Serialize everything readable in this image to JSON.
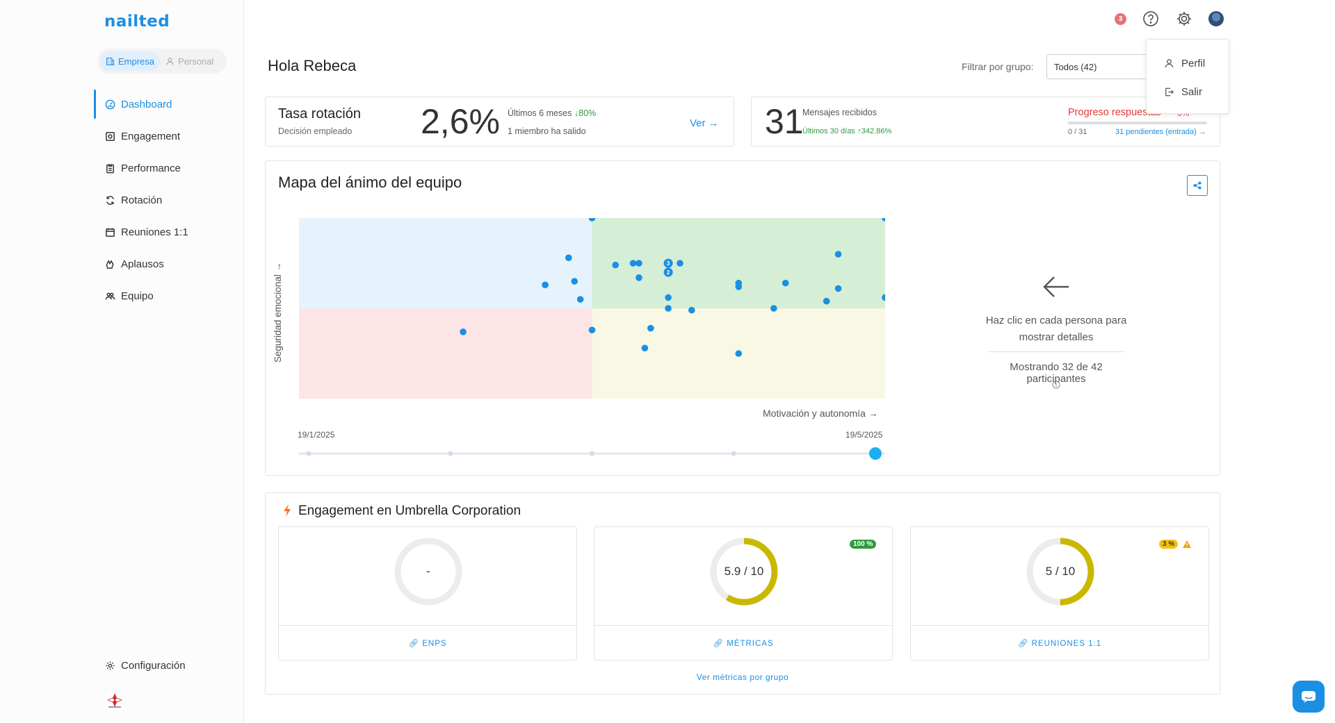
{
  "app": {
    "logo": "nailted"
  },
  "toggle": {
    "company": "Empresa",
    "personal": "Personal"
  },
  "nav": [
    {
      "label": "Dashboard",
      "icon": "gauge-icon",
      "active": true
    },
    {
      "label": "Engagement",
      "icon": "survey-icon"
    },
    {
      "label": "Performance",
      "icon": "clipboard-icon"
    },
    {
      "label": "Rotación",
      "icon": "refresh-icon"
    },
    {
      "label": "Reuniones 1:1",
      "icon": "calendar-icon"
    },
    {
      "label": "Aplausos",
      "icon": "clap-icon"
    },
    {
      "label": "Equipo",
      "icon": "team-icon"
    }
  ],
  "sidebar_footer": {
    "config": "Configuración"
  },
  "topbar": {
    "notifications": "3"
  },
  "user_menu": {
    "profile": "Perfil",
    "logout": "Salir"
  },
  "header": {
    "greeting": "Hola Rebeca",
    "filter_label": "Filtrar por grupo:",
    "filter_value": "Todos (42)"
  },
  "kpi_rotation": {
    "title": "Tasa rotación",
    "subtitle": "Decisión empleado",
    "value": "2,6%",
    "period": "Últimos 6 meses",
    "change": "↓80%",
    "note": "1 miembro ha salido",
    "link": "Ver →"
  },
  "kpi_messages": {
    "value": "31",
    "label": "Mensajes recibidos",
    "period": "Últimos 30 días",
    "change": "↑342.86%",
    "progress_title": "Progreso respuestas",
    "progress_pct": "0%",
    "progress_value": 0,
    "progress_count": "0 / 31",
    "pending_link": "31 pendientes (entrada) →"
  },
  "mood_map": {
    "title": "Mapa del ánimo del equipo",
    "y_label": "Seguridad emocional →",
    "x_label": "Motivación y autonomía →",
    "date_start": "19/1/2025",
    "date_end": "19/5/2025",
    "slider_stops": 5,
    "slider_selected": 4,
    "hint": "Haz clic en cada persona para mostrar detalles",
    "count_text": "Mostrando 32 de 42 participantes",
    "colors": {
      "top_left": "#e6f2fc",
      "top_right": "#d5eed6",
      "bottom_left": "#fde4e6",
      "bottom_right": "#f8f8e4",
      "dot": "#1a8fe3"
    }
  },
  "chart_data": {
    "type": "scatter",
    "title": "Mapa del ánimo del equipo",
    "xlabel": "Motivación y autonomía →",
    "ylabel": "Seguridad emocional →",
    "xlim": [
      0,
      10
    ],
    "ylim": [
      0,
      10
    ],
    "points": [
      {
        "x": 5.0,
        "y": 10.0
      },
      {
        "x": 10.0,
        "y": 10.0
      },
      {
        "x": 4.6,
        "y": 7.8
      },
      {
        "x": 6.3,
        "y": 7.0,
        "count": 2
      },
      {
        "x": 5.4,
        "y": 7.4
      },
      {
        "x": 5.7,
        "y": 7.5
      },
      {
        "x": 5.8,
        "y": 7.5
      },
      {
        "x": 6.3,
        "y": 7.5,
        "count": 3
      },
      {
        "x": 6.5,
        "y": 7.5
      },
      {
        "x": 9.2,
        "y": 8.0
      },
      {
        "x": 4.2,
        "y": 6.3
      },
      {
        "x": 4.7,
        "y": 6.5
      },
      {
        "x": 5.8,
        "y": 6.7
      },
      {
        "x": 7.5,
        "y": 6.4
      },
      {
        "x": 7.5,
        "y": 6.2
      },
      {
        "x": 8.3,
        "y": 6.4
      },
      {
        "x": 9.2,
        "y": 6.1
      },
      {
        "x": 4.8,
        "y": 5.5
      },
      {
        "x": 6.3,
        "y": 5.6
      },
      {
        "x": 9.0,
        "y": 5.4
      },
      {
        "x": 10.0,
        "y": 5.6
      },
      {
        "x": 6.3,
        "y": 5.0
      },
      {
        "x": 6.7,
        "y": 4.9
      },
      {
        "x": 8.1,
        "y": 5.0
      },
      {
        "x": 2.8,
        "y": 3.7
      },
      {
        "x": 5.0,
        "y": 3.8
      },
      {
        "x": 6.0,
        "y": 3.9
      },
      {
        "x": 5.9,
        "y": 2.8
      },
      {
        "x": 7.5,
        "y": 2.5
      }
    ]
  },
  "engagement": {
    "title": "Engagement en Umbrella Corporation",
    "cards": [
      {
        "value": "-",
        "score": null,
        "link": "ENPS"
      },
      {
        "value": "5.9 / 10",
        "score": 5.9,
        "badge": "100 %",
        "link": "MÉTRICAS"
      },
      {
        "value": "5 / 10",
        "score": 5.0,
        "badge": "3 %",
        "link": "REUNIONES 1:1"
      }
    ],
    "more_link": "Ver métricas por grupo",
    "colors": {
      "ring": "#c9b800",
      "track": "#ececec"
    }
  }
}
